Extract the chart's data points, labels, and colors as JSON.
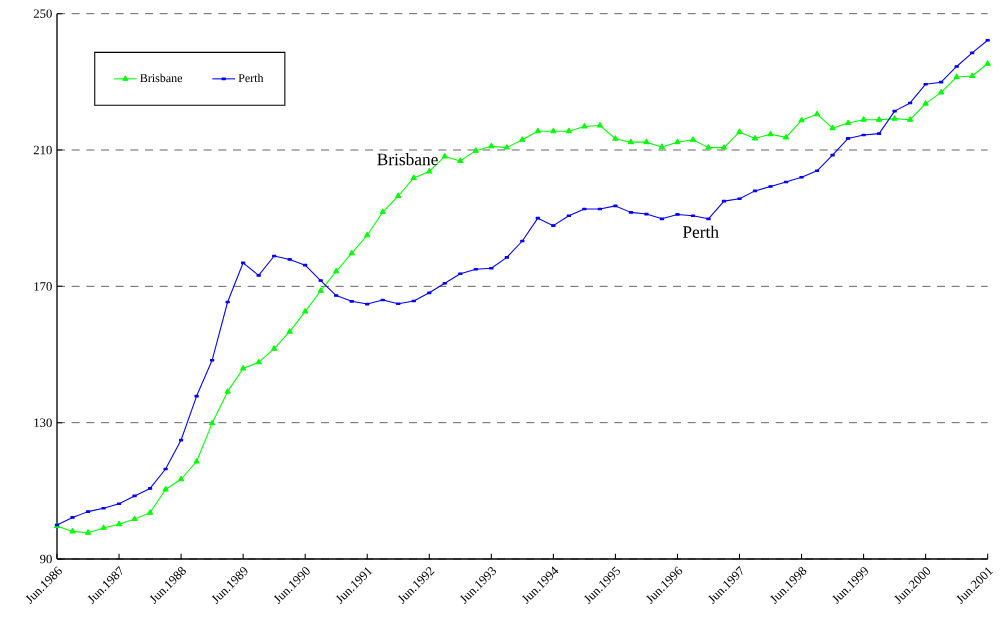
{
  "chart_data": {
    "type": "line",
    "categories": [
      "Jun.1986",
      null,
      null,
      null,
      "Jun.1987",
      null,
      null,
      null,
      "Jun.1988",
      null,
      null,
      null,
      "Jun.1989",
      null,
      null,
      null,
      "Jun.1990",
      null,
      null,
      null,
      "Jun.1991",
      null,
      null,
      null,
      "Jun.1992",
      null,
      null,
      null,
      "Jun.1993",
      null,
      null,
      null,
      "Jun.1994",
      null,
      null,
      null,
      "Jun.1995",
      null,
      null,
      null,
      "Jun.1996",
      null,
      null,
      null,
      "Jun.1997",
      null,
      null,
      null,
      "Jun.1998",
      null,
      null,
      null,
      "Jun.1999",
      null,
      null,
      null,
      "Jun.2000",
      null,
      null,
      null,
      "Jun.2001"
    ],
    "series": [
      {
        "name": "Brisbane",
        "color": "#00ff00",
        "marker": "triangle",
        "values": [
          99.7,
          98.1,
          97.7,
          99.1,
          100.2,
          101.7,
          103.6,
          110.4,
          113.4,
          118.6,
          129.8,
          139.1,
          145.9,
          147.7,
          151.7,
          156.7,
          162.6,
          168.7,
          174.4,
          179.7,
          185.0,
          191.8,
          196.5,
          201.8,
          203.7,
          208.1,
          206.8,
          209.8,
          211.1,
          210.7,
          213.0,
          215.5,
          215.5,
          215.5,
          216.9,
          217.2,
          213.3,
          212.3,
          212.3,
          210.9,
          212.3,
          213.0,
          210.7,
          210.7,
          215.3,
          213.4,
          214.6,
          213.7,
          218.7,
          220.5,
          216.4,
          217.9,
          218.9,
          218.9,
          219.2,
          218.9,
          223.6,
          226.9,
          231.4,
          231.7,
          235.3
        ]
      },
      {
        "name": "Perth",
        "color": "#0000ff",
        "marker": "square",
        "values": [
          100.0,
          102.2,
          103.9,
          104.9,
          106.2,
          108.5,
          110.7,
          116.4,
          124.9,
          137.8,
          148.3,
          165.4,
          176.9,
          173.2,
          178.9,
          177.9,
          176.2,
          171.7,
          167.3,
          165.6,
          164.8,
          166.0,
          164.9,
          165.7,
          168.1,
          170.9,
          173.7,
          175.0,
          175.3,
          178.5,
          183.3,
          190.0,
          187.8,
          190.7,
          192.7,
          192.7,
          193.6,
          191.7,
          191.2,
          189.8,
          191.1,
          190.7,
          189.8,
          195.0,
          195.7,
          198.0,
          199.3,
          200.6,
          202.0,
          203.9,
          208.5,
          213.4,
          214.4,
          214.8,
          221.4,
          223.8,
          229.3,
          229.9,
          234.5,
          238.5,
          242.2
        ]
      }
    ],
    "ylim": [
      90,
      250
    ],
    "yticks": [
      90,
      130,
      170,
      210,
      250
    ],
    "grid": "y",
    "legend": "top left",
    "line_style": "solid",
    "annotations": [
      "Brisbane",
      "Perth"
    ]
  }
}
